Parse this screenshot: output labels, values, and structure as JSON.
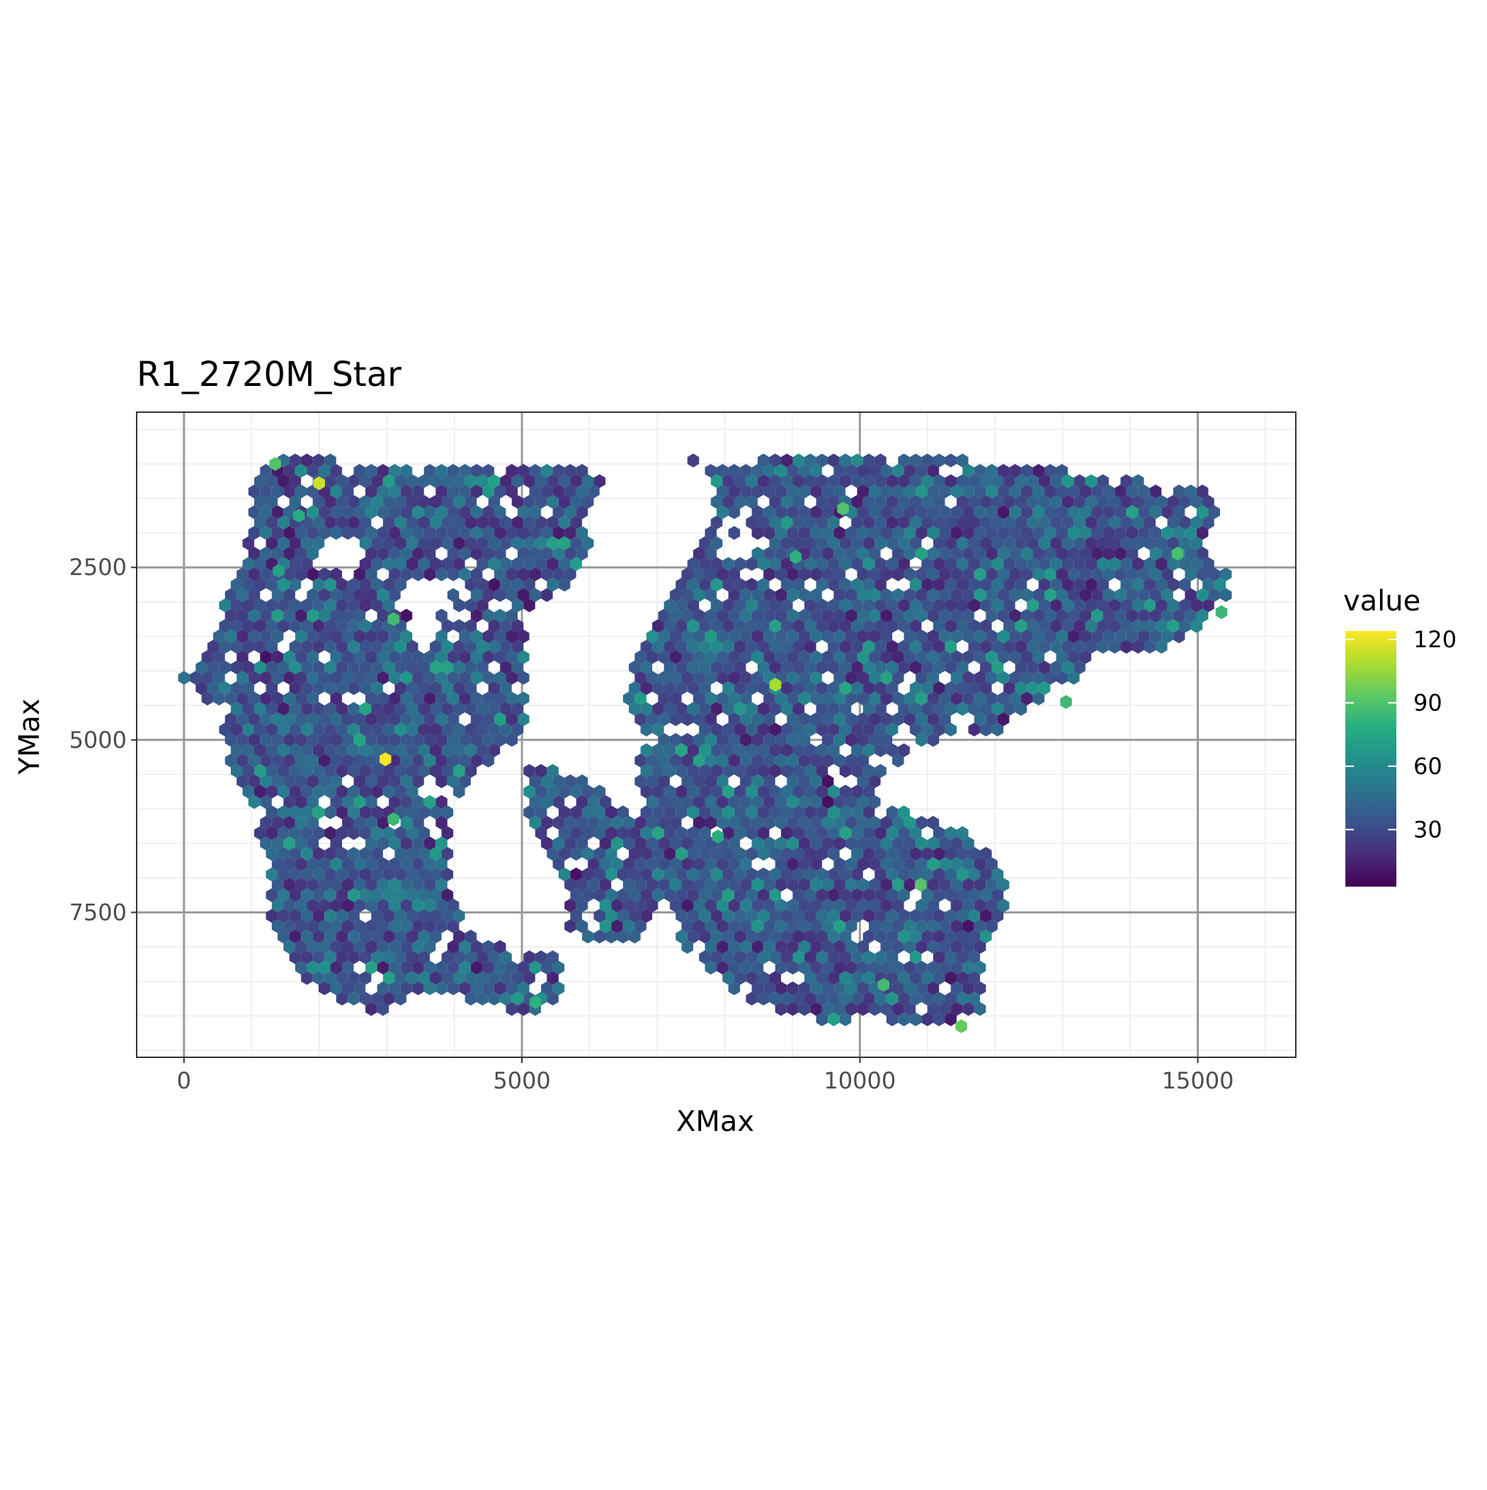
{
  "chart_data": {
    "type": "heatmap",
    "subtype": "hexbin",
    "title": "R1_2720M_Star",
    "xlabel": "XMax",
    "ylabel": "YMax",
    "xlim": [
      -700,
      16450
    ],
    "ylim": [
      9600,
      250
    ],
    "y_reversed": true,
    "x_ticks": [
      0,
      5000,
      10000,
      15000
    ],
    "x_tick_labels": [
      "0",
      "5000",
      "10000",
      "15000"
    ],
    "y_ticks": [
      2500,
      5000,
      7500
    ],
    "y_tick_labels": [
      "2500",
      "5000",
      "7500"
    ],
    "grid": true,
    "theme": "bw",
    "legend": {
      "title": "value",
      "position": "right",
      "breaks": [
        30,
        60,
        90,
        120
      ],
      "break_labels": [
        "30",
        "60",
        "90",
        "120"
      ],
      "range": [
        3,
        124
      ]
    },
    "colormap": "viridis",
    "colors": {
      "viridis": [
        "#440154",
        "#472d7b",
        "#3b528b",
        "#2c728e",
        "#21918c",
        "#28ae80",
        "#5ec962",
        "#addc30",
        "#fde725"
      ],
      "panel_border": "#333333",
      "major_grid": "#999999",
      "minor_grid": "#ebebeb"
    },
    "hex_size": 100,
    "base_value": 34,
    "regions": [
      {
        "name": "left-lobe",
        "polygon": [
          [
            1000,
            1200
          ],
          [
            1300,
            950
          ],
          [
            2200,
            950
          ],
          [
            3000,
            1050
          ],
          [
            5000,
            1050
          ],
          [
            5900,
            1050
          ],
          [
            6300,
            1250
          ],
          [
            5900,
            1700
          ],
          [
            6000,
            2200
          ],
          [
            5800,
            2700
          ],
          [
            5000,
            3200
          ],
          [
            5100,
            4000
          ],
          [
            5100,
            4800
          ],
          [
            4300,
            5500
          ],
          [
            3900,
            6000
          ],
          [
            3900,
            7200
          ],
          [
            4200,
            7800
          ],
          [
            4800,
            8000
          ],
          [
            5600,
            8100
          ],
          [
            5600,
            8700
          ],
          [
            5100,
            9000
          ],
          [
            3600,
            8600
          ],
          [
            2800,
            9000
          ],
          [
            1800,
            8500
          ],
          [
            1300,
            7600
          ],
          [
            1200,
            6500
          ],
          [
            800,
            5700
          ],
          [
            500,
            4600
          ],
          [
            0,
            4100
          ],
          [
            400,
            3500
          ],
          [
            800,
            2600
          ],
          [
            1000,
            1800
          ]
        ]
      },
      {
        "name": "middle-strip",
        "polygon": [
          [
            5000,
            5400
          ],
          [
            5500,
            5300
          ],
          [
            6400,
            5900
          ],
          [
            6900,
            6300
          ],
          [
            7100,
            6800
          ],
          [
            7000,
            7600
          ],
          [
            6500,
            8000
          ],
          [
            5700,
            7800
          ],
          [
            5600,
            6900
          ],
          [
            5100,
            6200
          ]
        ]
      },
      {
        "name": "right-lobe",
        "polygon": [
          [
            7500,
            900
          ],
          [
            8200,
            1100
          ],
          [
            8600,
            900
          ],
          [
            9500,
            900
          ],
          [
            10100,
            800
          ],
          [
            11100,
            900
          ],
          [
            13000,
            1100
          ],
          [
            14200,
            1250
          ],
          [
            15200,
            1400
          ],
          [
            15400,
            1700
          ],
          [
            15000,
            2200
          ],
          [
            15600,
            2700
          ],
          [
            15200,
            3200
          ],
          [
            14500,
            3700
          ],
          [
            13500,
            3800
          ],
          [
            13300,
            4000
          ],
          [
            12300,
            4800
          ],
          [
            10800,
            5100
          ],
          [
            10100,
            5800
          ],
          [
            11500,
            6300
          ],
          [
            12100,
            6800
          ],
          [
            12200,
            7400
          ],
          [
            11800,
            8200
          ],
          [
            11800,
            8900
          ],
          [
            11100,
            9200
          ],
          [
            10200,
            9000
          ],
          [
            9500,
            9100
          ],
          [
            8300,
            8800
          ],
          [
            7500,
            8100
          ],
          [
            7000,
            7200
          ],
          [
            6900,
            6500
          ],
          [
            6700,
            5600
          ],
          [
            6800,
            4900
          ],
          [
            6500,
            4500
          ],
          [
            6800,
            3500
          ],
          [
            7200,
            2800
          ],
          [
            7700,
            2000
          ],
          [
            7900,
            1500
          ]
        ]
      }
    ],
    "holes": [
      {
        "center": [
          3700,
          3100
        ],
        "radius": 500
      },
      {
        "center": [
          2300,
          2400
        ],
        "radius": 350
      },
      {
        "center": [
          8200,
          2100
        ],
        "radius": 300
      }
    ],
    "notable_bins": [
      {
        "x": 2000,
        "y": 1280,
        "value": 115
      },
      {
        "x": 2980,
        "y": 5280,
        "value": 124
      },
      {
        "x": 8750,
        "y": 4200,
        "value": 108
      },
      {
        "x": 11500,
        "y": 9150,
        "value": 95
      },
      {
        "x": 10900,
        "y": 7100,
        "value": 92
      },
      {
        "x": 1350,
        "y": 1000,
        "value": 90
      },
      {
        "x": 14700,
        "y": 2300,
        "value": 88
      },
      {
        "x": 13050,
        "y": 4450,
        "value": 85
      },
      {
        "x": 3100,
        "y": 6150,
        "value": 84
      },
      {
        "x": 9750,
        "y": 1650,
        "value": 90
      },
      {
        "x": 3100,
        "y": 3250,
        "value": 86
      },
      {
        "x": 15350,
        "y": 3150,
        "value": 84
      },
      {
        "x": 10350,
        "y": 8550,
        "value": 86
      },
      {
        "x": 5200,
        "y": 8800,
        "value": 80
      },
      {
        "x": 1700,
        "y": 1750,
        "value": 78
      },
      {
        "x": 9050,
        "y": 2350,
        "value": 80
      },
      {
        "x": 1400,
        "y": 2550,
        "value": 72
      },
      {
        "x": 7900,
        "y": 6400,
        "value": 78
      }
    ]
  }
}
